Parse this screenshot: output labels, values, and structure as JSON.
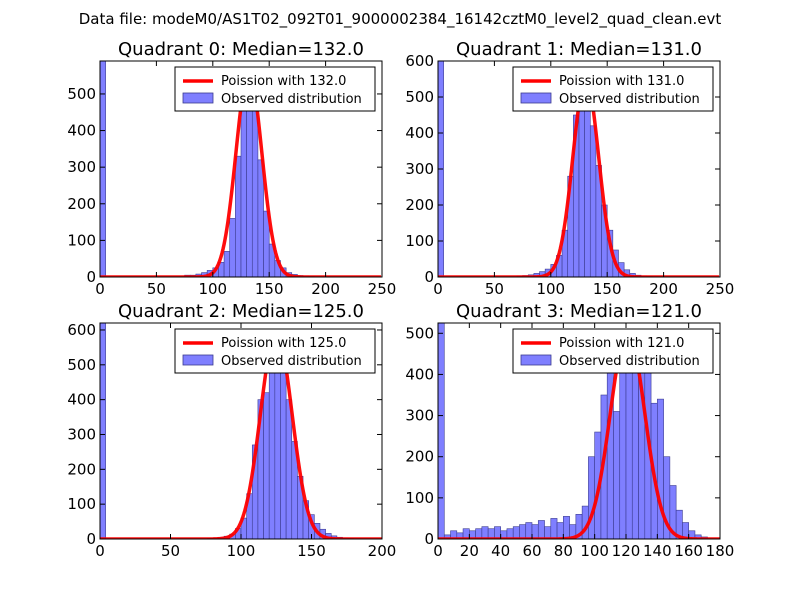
{
  "suptitle": "Data file: modeM0/AS1T02_092T01_9000002384_16142cztM0_level2_quad_clean.evt",
  "colors": {
    "bar_fill": "#7f7fff",
    "bar_edge": "#3b3b8f",
    "poisson_line": "#ff0000",
    "axes": "#000000",
    "background": "#ffffff"
  },
  "chart_data": [
    {
      "type": "bar",
      "title": "Quadrant 0: Median=132.0",
      "xlim": [
        0,
        250
      ],
      "ylim": [
        0,
        590
      ],
      "xticks": [
        0,
        50,
        100,
        150,
        200,
        250
      ],
      "yticks": [
        0,
        100,
        200,
        300,
        400,
        500
      ],
      "legend_position": "top-right",
      "legend": [
        "Poission with 132.0",
        "Observed distribution"
      ],
      "bin_width": 5,
      "bin_starts": [
        0,
        75,
        80,
        85,
        90,
        95,
        100,
        105,
        110,
        115,
        120,
        125,
        130,
        135,
        140,
        145,
        150,
        155,
        160,
        165,
        170,
        175,
        180,
        185,
        190
      ],
      "values": [
        590,
        5,
        5,
        8,
        12,
        18,
        25,
        40,
        70,
        160,
        330,
        470,
        560,
        470,
        320,
        180,
        90,
        45,
        25,
        12,
        7,
        4,
        3,
        2,
        1
      ],
      "poisson_mean": 132.0,
      "poisson_peak": 560
    },
    {
      "type": "bar",
      "title": "Quadrant 1: Median=131.0",
      "xlim": [
        0,
        250
      ],
      "ylim": [
        0,
        600
      ],
      "xticks": [
        0,
        50,
        100,
        150,
        200,
        250
      ],
      "yticks": [
        0,
        100,
        200,
        300,
        400,
        500,
        600
      ],
      "legend_position": "top-right",
      "legend": [
        "Poission with 131.0",
        "Observed distribution"
      ],
      "bin_width": 5,
      "bin_starts": [
        0,
        70,
        75,
        80,
        85,
        90,
        95,
        100,
        105,
        110,
        115,
        120,
        125,
        130,
        135,
        140,
        145,
        150,
        155,
        160,
        165,
        170,
        175,
        180,
        185,
        190
      ],
      "values": [
        600,
        3,
        4,
        6,
        10,
        15,
        22,
        35,
        60,
        130,
        280,
        450,
        550,
        520,
        420,
        310,
        200,
        130,
        75,
        40,
        20,
        10,
        5,
        3,
        2,
        1
      ],
      "poisson_mean": 131.0,
      "poisson_peak": 550
    },
    {
      "type": "bar",
      "title": "Quadrant 2: Median=125.0",
      "xlim": [
        0,
        200
      ],
      "ylim": [
        0,
        620
      ],
      "xticks": [
        0,
        50,
        100,
        150,
        200
      ],
      "yticks": [
        0,
        100,
        200,
        300,
        400,
        500,
        600
      ],
      "legend_position": "top-right",
      "legend": [
        "Poission with 125.0",
        "Observed distribution"
      ],
      "bin_width": 4,
      "bin_starts": [
        0,
        76,
        80,
        84,
        88,
        92,
        96,
        100,
        104,
        108,
        112,
        116,
        120,
        124,
        128,
        132,
        136,
        140,
        144,
        148,
        152,
        156,
        160,
        164,
        168,
        172,
        176,
        180
      ],
      "values": [
        620,
        2,
        3,
        5,
        8,
        14,
        30,
        60,
        130,
        270,
        400,
        420,
        480,
        560,
        530,
        400,
        280,
        180,
        110,
        70,
        45,
        28,
        16,
        9,
        5,
        3,
        2,
        1
      ],
      "poisson_mean": 125.0,
      "poisson_peak": 595
    },
    {
      "type": "bar",
      "title": "Quadrant 3: Median=121.0",
      "xlim": [
        0,
        180
      ],
      "ylim": [
        0,
        525
      ],
      "xticks": [
        0,
        20,
        40,
        60,
        80,
        100,
        120,
        140,
        160,
        180
      ],
      "yticks": [
        0,
        100,
        200,
        300,
        400,
        500
      ],
      "legend_position": "top-right",
      "legend": [
        "Poission with 121.0",
        "Observed distribution"
      ],
      "bin_width": 4,
      "bin_starts": [
        0,
        4,
        8,
        12,
        16,
        20,
        24,
        28,
        32,
        36,
        40,
        44,
        48,
        52,
        56,
        60,
        64,
        68,
        72,
        76,
        80,
        84,
        88,
        92,
        96,
        100,
        104,
        108,
        112,
        116,
        120,
        124,
        128,
        132,
        136,
        140,
        144,
        148,
        152,
        156,
        160,
        164,
        168
      ],
      "values": [
        525,
        10,
        20,
        15,
        25,
        20,
        25,
        30,
        25,
        30,
        20,
        25,
        30,
        35,
        40,
        35,
        45,
        30,
        50,
        40,
        55,
        35,
        60,
        80,
        200,
        260,
        350,
        470,
        310,
        490,
        510,
        410,
        480,
        430,
        330,
        340,
        200,
        130,
        70,
        40,
        20,
        10,
        5
      ],
      "poisson_mean": 121.0,
      "poisson_peak": 505
    }
  ]
}
